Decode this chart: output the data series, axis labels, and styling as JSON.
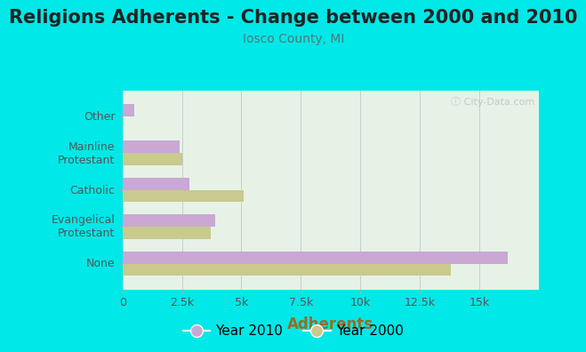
{
  "title": "Religions Adherents - Change between 2000 and 2010",
  "subtitle": "Iosco County, MI",
  "xlabel": "Adherents",
  "categories": [
    "None",
    "Evangelical\nProtestant",
    "Catholic",
    "Mainline\nProtestant",
    "Other"
  ],
  "year2010": [
    16200,
    3900,
    2800,
    2400,
    480
  ],
  "year2000": [
    13800,
    3700,
    5100,
    2500,
    50
  ],
  "color2010": "#c9a8d4",
  "color2000": "#c8ca8e",
  "bg_outer": "#00e8e8",
  "bg_plot": "#e6f2e6",
  "title_fontsize": 15,
  "subtitle_fontsize": 10,
  "xlabel_fontsize": 12,
  "tick_fontsize": 9,
  "legend_fontsize": 11,
  "bar_height": 0.33,
  "xlim": [
    0,
    17500
  ],
  "xticks": [
    0,
    2500,
    5000,
    7500,
    10000,
    12500,
    15000
  ],
  "xticklabels": [
    "0",
    "2.5k",
    "5k",
    "7.5k",
    "10k",
    "12.5k",
    "15k"
  ],
  "watermark": "ⓘ City-Data.com"
}
